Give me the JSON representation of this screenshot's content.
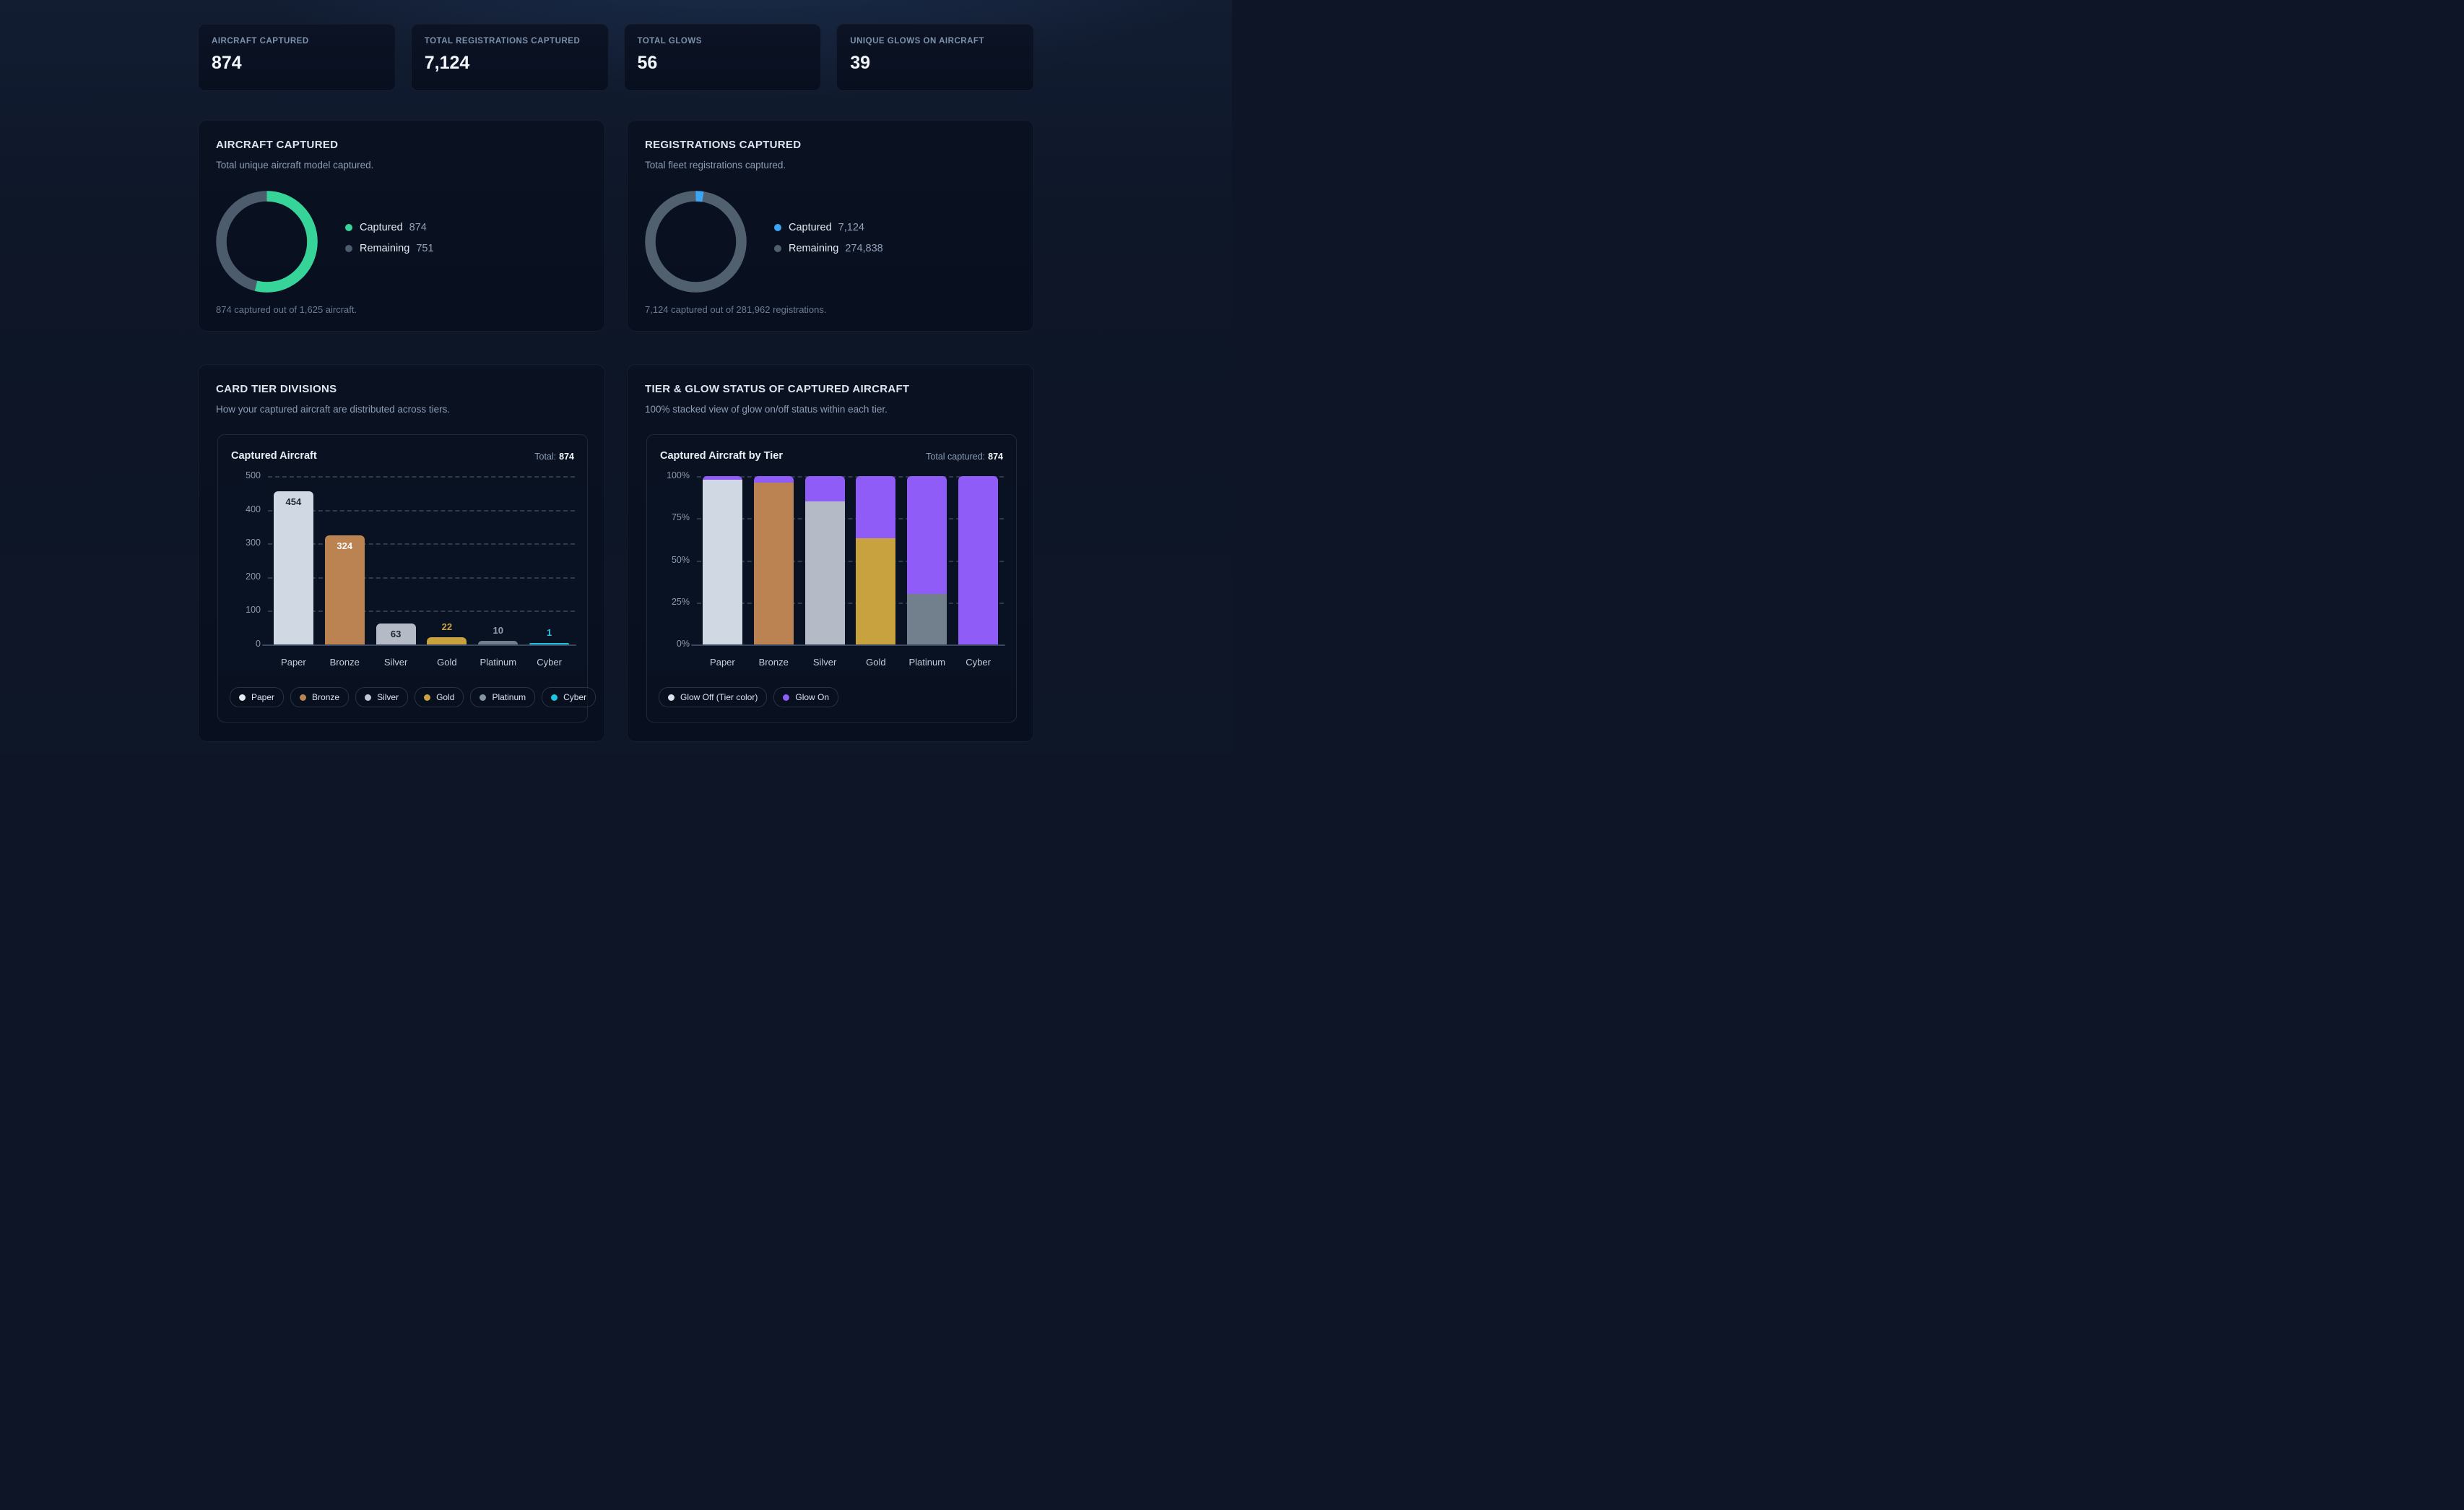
{
  "stats": [
    {
      "label": "AIRCRAFT CAPTURED",
      "value": "874"
    },
    {
      "label": "TOTAL REGISTRATIONS CAPTURED",
      "value": "7,124"
    },
    {
      "label": "TOTAL GLOWS",
      "value": "56"
    },
    {
      "label": "UNIQUE GLOWS ON AIRCRAFT",
      "value": "39"
    }
  ],
  "colors": {
    "captured_green": "#36d498",
    "captured_blue": "#3ba6f5",
    "remaining_gray": "#4d5c6d",
    "glow_on_purple": "#8f5cf7",
    "glow_off_dot": "#dbe2ec"
  },
  "chart_data": [
    {
      "type": "pie",
      "variant": "donut",
      "title": "AIRCRAFT CAPTURED",
      "subtitle": "Total unique aircraft model captured.",
      "labels": [
        "Captured",
        "Remaining"
      ],
      "values": [
        874,
        751
      ],
      "display_values": [
        "874",
        "751"
      ],
      "colors": [
        "#36d498",
        "#4d5c6d"
      ],
      "percent_filled": 53.8,
      "footer": "874 captured out of 1,625 aircraft."
    },
    {
      "type": "pie",
      "variant": "donut",
      "title": "REGISTRATIONS CAPTURED",
      "subtitle": "Total fleet registrations captured.",
      "labels": [
        "Captured",
        "Remaining"
      ],
      "values": [
        7124,
        274838
      ],
      "display_values": [
        "7,124",
        "274,838"
      ],
      "colors": [
        "#3ba6f5",
        "#51606f"
      ],
      "percent_filled": 2.53,
      "footer": "7,124 captured out of 281,962 registrations."
    },
    {
      "type": "bar",
      "card_title": "CARD TIER DIVISIONS",
      "card_subtitle": "How your captured aircraft are distributed across tiers.",
      "panel_title": "Captured Aircraft",
      "total_label": "Total:",
      "total_value": "874",
      "categories": [
        "Paper",
        "Bronze",
        "Silver",
        "Gold",
        "Platinum",
        "Cyber"
      ],
      "values": [
        454,
        324,
        63,
        22,
        10,
        1
      ],
      "bar_colors": [
        "#cfd8e3",
        "#bb8252",
        "#b4bbc7",
        "#c7a23f",
        "#72808d",
        "#1ec3dd"
      ],
      "value_labels": [
        {
          "text": "454",
          "placement": "inside",
          "color": "#1d2533"
        },
        {
          "text": "324",
          "placement": "inside",
          "color": "#f8fafc"
        },
        {
          "text": "63",
          "placement": "inside",
          "color": "#1d2533"
        },
        {
          "text": "22",
          "placement": "above",
          "color": "#c9a243"
        },
        {
          "text": "10",
          "placement": "above",
          "color": "#93a0b0"
        },
        {
          "text": "1",
          "placement": "above",
          "color": "#2cc5df"
        }
      ],
      "ylim": [
        0,
        500
      ],
      "yticks": [
        500,
        400,
        300,
        200,
        100,
        0
      ],
      "grid": "dashed",
      "legend": [
        {
          "label": "Paper",
          "color": "#e6ebf2"
        },
        {
          "label": "Bronze",
          "color": "#bb8252"
        },
        {
          "label": "Silver",
          "color": "#c2c9d5"
        },
        {
          "label": "Gold",
          "color": "#c9a243"
        },
        {
          "label": "Platinum",
          "color": "#8494a3"
        },
        {
          "label": "Cyber",
          "color": "#1ec3dd"
        }
      ]
    },
    {
      "type": "bar",
      "subtype": "stacked-100",
      "card_title": "TIER & GLOW STATUS OF CAPTURED AIRCRAFT",
      "card_subtitle": "100% stacked view of glow on/off status within each tier.",
      "panel_title": "Captured Aircraft by Tier",
      "total_label": "Total captured:",
      "total_value": "874",
      "categories": [
        "Paper",
        "Bronze",
        "Silver",
        "Gold",
        "Platinum",
        "Cyber"
      ],
      "series": [
        {
          "name": "Glow Off (Tier color)",
          "values_pct": [
            98,
            96,
            85,
            63,
            30,
            0
          ],
          "colors": [
            "#cfd8e3",
            "#bb8252",
            "#b4bbc7",
            "#c7a23f",
            "#72808d",
            "#1ec3dd"
          ]
        },
        {
          "name": "Glow On",
          "values_pct": [
            2,
            4,
            15,
            37,
            70,
            100
          ],
          "color": "#8f5cf7"
        }
      ],
      "ytick_labels": [
        "100%",
        "75%",
        "50%",
        "25%",
        "0%"
      ],
      "ytick_pcts": [
        100,
        75,
        50,
        25,
        0
      ],
      "grid": "dashed",
      "legend": [
        {
          "label": "Glow Off (Tier color)",
          "color": "#dbe2ec"
        },
        {
          "label": "Glow On",
          "color": "#8f5cf7"
        }
      ]
    }
  ]
}
